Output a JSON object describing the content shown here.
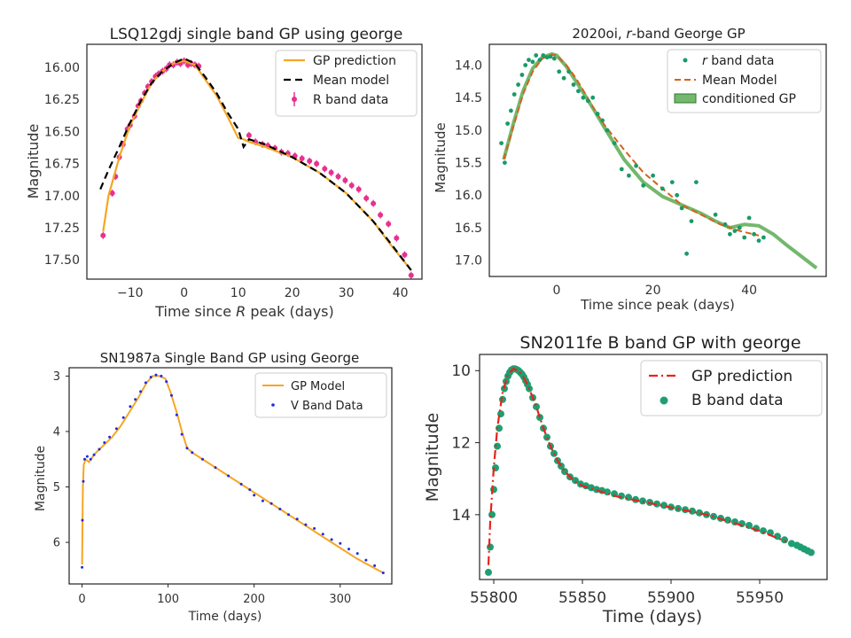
{
  "chart_data": [
    {
      "type": "scatter",
      "title": "LSQ12gdj single band GP using george",
      "xlabel_prefix": "Time since ",
      "xlabel_italic": "R",
      "xlabel_suffix": " peak (days)",
      "ylabel": "Magnitude",
      "xlim": [
        -18,
        44
      ],
      "ylim": [
        17.65,
        15.82
      ],
      "y_inverted": true,
      "grid": false,
      "legend_position": "top-right",
      "xticks": [
        -10,
        0,
        10,
        20,
        30,
        40
      ],
      "yticks": [
        16.0,
        16.25,
        16.5,
        16.75,
        17.0,
        17.25,
        17.5
      ],
      "ytick_labels": [
        "16.00",
        "16.25",
        "16.50",
        "16.75",
        "17.00",
        "17.25",
        "17.50"
      ],
      "legend": [
        "GP prediction",
        "Mean model",
        "R band data"
      ],
      "colors": {
        "gp": "#f5a623",
        "mean": "#000000",
        "data": "#e8318f"
      },
      "gp": {
        "x": [
          -15,
          -14,
          -12,
          -10,
          -8,
          -6,
          -4,
          -2,
          0,
          2,
          4,
          6,
          8,
          10,
          11,
          12,
          15,
          20,
          25,
          30,
          35,
          38,
          42
        ],
        "y": [
          17.28,
          17.0,
          16.7,
          16.45,
          16.28,
          16.12,
          16.03,
          15.97,
          15.95,
          15.98,
          16.1,
          16.22,
          16.38,
          16.55,
          16.56,
          16.58,
          16.62,
          16.7,
          16.82,
          16.98,
          17.2,
          17.37,
          17.58
        ]
      },
      "mean": {
        "x": [
          -15.5,
          -14,
          -12,
          -10,
          -8,
          -6,
          -4,
          -2,
          0,
          2,
          4,
          6,
          8,
          10,
          11,
          12,
          15,
          20,
          25,
          30,
          35,
          38,
          42
        ],
        "y": [
          16.95,
          16.8,
          16.62,
          16.43,
          16.26,
          16.12,
          16.03,
          15.97,
          15.93,
          15.97,
          16.08,
          16.2,
          16.35,
          16.48,
          16.62,
          16.56,
          16.6,
          16.7,
          16.82,
          16.98,
          17.2,
          17.36,
          17.58
        ]
      },
      "data": {
        "x": [
          -15,
          -13.3,
          -12.7,
          -12,
          -11.3,
          -10.5,
          -10,
          -9.2,
          -8.5,
          -8,
          -7.3,
          -6.7,
          -6,
          -5.3,
          -4.7,
          -4,
          -3.3,
          -2.7,
          -2,
          -1.3,
          -0.7,
          0,
          0.7,
          1.3,
          2,
          2.7,
          12,
          13.2,
          14.5,
          15.5,
          16.8,
          18,
          19.2,
          20.5,
          21.8,
          23.2,
          24.5,
          26,
          27.2,
          28.5,
          29.8,
          31,
          32.3,
          33.7,
          35,
          36.3,
          37.8,
          39.3,
          40.8,
          42
        ],
        "y": [
          17.31,
          16.98,
          16.85,
          16.7,
          16.6,
          16.48,
          16.45,
          16.38,
          16.3,
          16.26,
          16.2,
          16.15,
          16.11,
          16.07,
          16.05,
          16.03,
          16.01,
          15.98,
          15.98,
          15.96,
          15.97,
          15.95,
          15.98,
          15.97,
          15.98,
          15.99,
          16.53,
          16.58,
          16.6,
          16.61,
          16.63,
          16.66,
          16.67,
          16.69,
          16.71,
          16.73,
          16.75,
          16.79,
          16.82,
          16.85,
          16.88,
          16.92,
          16.95,
          17.02,
          17.06,
          17.15,
          17.22,
          17.33,
          17.46,
          17.62
        ]
      }
    },
    {
      "type": "scatter",
      "title_prefix": "2020oi, ",
      "title_italic": "r",
      "title_suffix": "-band George GP",
      "xlabel": "Time since peak (days)",
      "ylabel": "Magnitude",
      "xlim": [
        -14,
        56
      ],
      "ylim": [
        17.25,
        13.68
      ],
      "y_inverted": true,
      "grid": false,
      "legend_position": "top-right",
      "xticks": [
        0,
        20,
        40
      ],
      "yticks": [
        14.0,
        14.5,
        15.0,
        15.5,
        16.0,
        16.5,
        17.0
      ],
      "ytick_labels": [
        "14.0",
        "14.5",
        "15.0",
        "15.5",
        "16.0",
        "16.5",
        "17.0"
      ],
      "legend_italic": "r",
      "legend_data_suffix": " band data",
      "legend": [
        "Mean Model",
        "conditioned GP"
      ],
      "colors": {
        "data": "#1a9a67",
        "mean": "#d8601a",
        "gp": "#5bac53"
      },
      "gp": {
        "x": [
          -11,
          -9,
          -7,
          -5,
          -3,
          -1,
          0,
          2,
          4,
          6,
          8,
          10,
          14,
          18,
          22,
          26,
          30,
          33,
          36,
          39,
          42,
          45,
          48,
          51,
          54
        ],
        "y": [
          15.45,
          14.9,
          14.4,
          14.05,
          13.88,
          13.83,
          13.85,
          14.02,
          14.25,
          14.48,
          14.72,
          14.97,
          15.45,
          15.8,
          16.02,
          16.15,
          16.28,
          16.4,
          16.5,
          16.45,
          16.47,
          16.6,
          16.78,
          16.95,
          17.12
        ]
      },
      "mean": {
        "x": [
          -11,
          -9,
          -7,
          -5,
          -3,
          -1,
          0,
          2,
          4,
          6,
          8,
          10,
          14,
          18,
          22,
          26,
          30,
          34,
          38,
          42
        ],
        "y": [
          15.45,
          14.95,
          14.45,
          14.1,
          13.9,
          13.84,
          13.85,
          14.0,
          14.2,
          14.45,
          14.7,
          14.93,
          15.3,
          15.65,
          15.9,
          16.15,
          16.3,
          16.45,
          16.55,
          16.62
        ]
      },
      "data": {
        "x": [
          -11.5,
          -10.8,
          -10.2,
          -9.5,
          -8.8,
          -8,
          -7.2,
          -6.5,
          -5.8,
          -5,
          -4.3,
          -3.5,
          -2.8,
          -2,
          -1.3,
          -0.5,
          0.5,
          1.5,
          2.5,
          3.5,
          4.5,
          5.5,
          6.5,
          7.5,
          8.5,
          9.5,
          10.5,
          12,
          13.5,
          15,
          16.5,
          18,
          20,
          22,
          24,
          25,
          26,
          27,
          28,
          29,
          33,
          35,
          36,
          37,
          38,
          39,
          40,
          41,
          42,
          43
        ],
        "y": [
          15.2,
          15.5,
          14.9,
          14.7,
          14.45,
          14.3,
          14.15,
          14.0,
          13.92,
          13.95,
          13.85,
          13.92,
          13.85,
          13.88,
          13.87,
          13.9,
          14.1,
          14.2,
          14.1,
          14.3,
          14.4,
          14.5,
          14.55,
          14.5,
          14.75,
          14.85,
          15.0,
          15.2,
          15.6,
          15.7,
          15.55,
          15.85,
          15.7,
          15.9,
          15.8,
          16.0,
          16.2,
          16.9,
          16.4,
          15.8,
          16.3,
          16.45,
          16.6,
          16.55,
          16.5,
          16.65,
          16.35,
          16.6,
          16.7,
          16.65
        ]
      }
    },
    {
      "type": "scatter",
      "title": "SN1987a Single Band GP using George",
      "xlabel": "Time (days)",
      "ylabel": "Magnitude",
      "xlim": [
        -15,
        360
      ],
      "ylim": [
        6.75,
        2.85
      ],
      "y_inverted": true,
      "grid": false,
      "legend_position": "top-right",
      "xticks": [
        0,
        100,
        200,
        300
      ],
      "yticks": [
        3,
        4,
        5,
        6
      ],
      "legend": [
        "GP Model",
        "V Band Data"
      ],
      "colors": {
        "gp": "#f5a623",
        "data": "#1f2be0"
      },
      "gp": {
        "x": [
          0,
          1,
          2,
          4,
          8,
          15,
          25,
          35,
          45,
          55,
          65,
          75,
          82,
          90,
          97,
          103,
          110,
          116,
          122,
          130,
          150,
          175,
          200,
          230,
          260,
          290,
          320,
          350
        ],
        "y": [
          6.4,
          5.0,
          4.6,
          4.5,
          4.55,
          4.4,
          4.25,
          4.1,
          3.9,
          3.65,
          3.4,
          3.12,
          3.0,
          3.0,
          3.05,
          3.3,
          3.65,
          4.0,
          4.3,
          4.4,
          4.6,
          4.85,
          5.1,
          5.4,
          5.7,
          6.0,
          6.3,
          6.55
        ]
      },
      "data": {
        "x": [
          0,
          0.5,
          1.5,
          3,
          6,
          10,
          14,
          20,
          26,
          32,
          40,
          48,
          56,
          62,
          68,
          74,
          80,
          86,
          92,
          98,
          104,
          110,
          116,
          122,
          128,
          140,
          155,
          170,
          185,
          195,
          200,
          210,
          220,
          230,
          240,
          250,
          260,
          270,
          280,
          290,
          300,
          310,
          320,
          330,
          340,
          350
        ],
        "y": [
          6.45,
          5.6,
          4.9,
          4.5,
          4.45,
          4.5,
          4.42,
          4.32,
          4.2,
          4.1,
          3.95,
          3.75,
          3.55,
          3.42,
          3.28,
          3.12,
          3.02,
          2.98,
          3.0,
          3.1,
          3.35,
          3.7,
          4.05,
          4.3,
          4.38,
          4.5,
          4.65,
          4.8,
          4.95,
          5.05,
          5.15,
          5.25,
          5.3,
          5.4,
          5.5,
          5.58,
          5.68,
          5.75,
          5.85,
          5.95,
          6.02,
          6.12,
          6.2,
          6.32,
          6.42,
          6.55
        ]
      }
    },
    {
      "type": "scatter",
      "title": "SN2011fe B band GP with george",
      "xlabel": "Time (days)",
      "ylabel": "Magnitude",
      "xlim": [
        55792,
        55988
      ],
      "ylim": [
        15.8,
        9.55
      ],
      "y_inverted": true,
      "grid": false,
      "legend_position": "top-right",
      "xticks": [
        55800,
        55850,
        55900,
        55950
      ],
      "yticks": [
        10,
        12,
        14
      ],
      "legend": [
        "GP prediction",
        "B band data"
      ],
      "colors": {
        "gp": "#e8231d",
        "data": "#1f9e72"
      },
      "gp": {
        "x": [
          55797,
          55798,
          55800,
          55802,
          55805,
          55808,
          55811,
          55814,
          55817,
          55820,
          55824,
          55828,
          55832,
          55836,
          55840,
          55845,
          55850,
          55860,
          55870,
          55880,
          55890,
          55900,
          55910,
          55920,
          55930,
          55940,
          55950,
          55960,
          55965
        ],
        "y": [
          15.4,
          14.2,
          12.7,
          11.6,
          10.6,
          10.1,
          9.95,
          10.0,
          10.2,
          10.5,
          11.0,
          11.6,
          12.1,
          12.5,
          12.8,
          13.05,
          13.2,
          13.35,
          13.5,
          13.6,
          13.7,
          13.8,
          13.9,
          14.0,
          14.15,
          14.3,
          14.45,
          14.65,
          14.75
        ]
      },
      "data": {
        "x": [
          55797,
          55798,
          55799,
          55800,
          55801,
          55802,
          55803,
          55804,
          55805,
          55806,
          55807,
          55808,
          55809,
          55810,
          55811,
          55812,
          55813,
          55814,
          55815,
          55816,
          55817,
          55818,
          55819,
          55820,
          55822,
          55824,
          55826,
          55828,
          55830,
          55832,
          55834,
          55836,
          55838,
          55840,
          55843,
          55846,
          55849,
          55852,
          55855,
          55858,
          55861,
          55864,
          55868,
          55872,
          55876,
          55880,
          55884,
          55888,
          55892,
          55896,
          55900,
          55904,
          55908,
          55912,
          55916,
          55920,
          55924,
          55928,
          55932,
          55936,
          55940,
          55944,
          55948,
          55952,
          55956,
          55960,
          55964,
          55968,
          55971,
          55973,
          55975,
          55977,
          55979
        ],
        "y": [
          15.6,
          14.9,
          14.0,
          13.3,
          12.7,
          12.1,
          11.6,
          11.2,
          10.8,
          10.5,
          10.3,
          10.15,
          10.05,
          9.98,
          9.95,
          9.95,
          9.97,
          10.0,
          10.05,
          10.1,
          10.18,
          10.28,
          10.38,
          10.5,
          10.75,
          11.0,
          11.3,
          11.6,
          11.85,
          12.1,
          12.3,
          12.5,
          12.65,
          12.8,
          12.95,
          13.05,
          13.15,
          13.2,
          13.25,
          13.3,
          13.33,
          13.37,
          13.42,
          13.48,
          13.52,
          13.58,
          13.62,
          13.66,
          13.7,
          13.74,
          13.79,
          13.83,
          13.86,
          13.9,
          13.95,
          14.0,
          14.05,
          14.1,
          14.15,
          14.2,
          14.25,
          14.3,
          14.38,
          14.45,
          14.5,
          14.6,
          14.7,
          14.8,
          14.85,
          14.9,
          14.95,
          15.0,
          15.05
        ]
      }
    }
  ]
}
